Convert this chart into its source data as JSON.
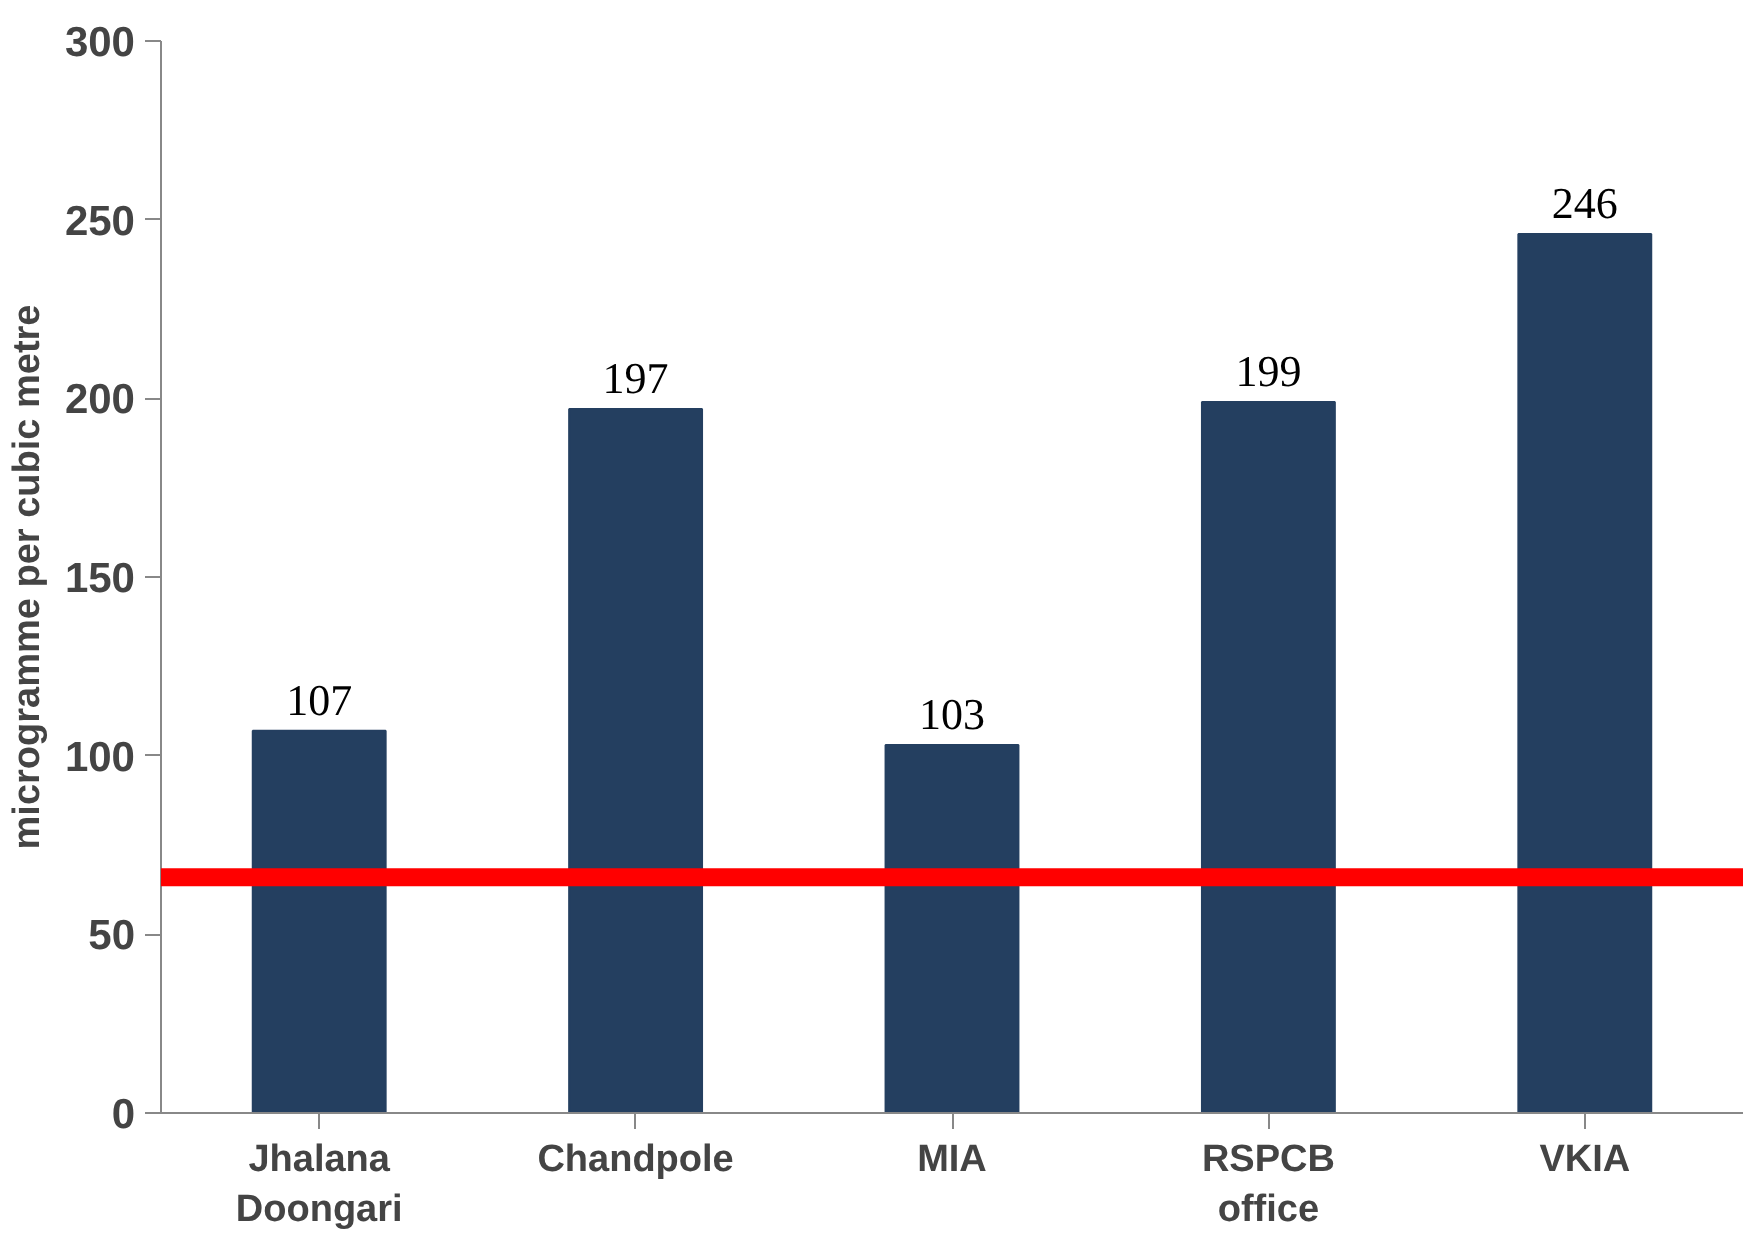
{
  "chart_data": {
    "type": "bar",
    "ylabel": "microgramme per cubic metre",
    "categories": [
      "Jhalana\nDoongari",
      "Chandpole",
      "MIA",
      "RSPCB\noffice",
      "VKIA"
    ],
    "values": [
      107,
      197,
      103,
      199,
      246
    ],
    "color": "#243f60",
    "ylim": [
      0,
      300
    ],
    "yticks": [
      0,
      50,
      100,
      150,
      200,
      250,
      300
    ],
    "grid": false,
    "data_labels": true,
    "ref_lines": [
      {
        "axis": "y",
        "value": 66,
        "color": "#ff0000"
      }
    ]
  }
}
